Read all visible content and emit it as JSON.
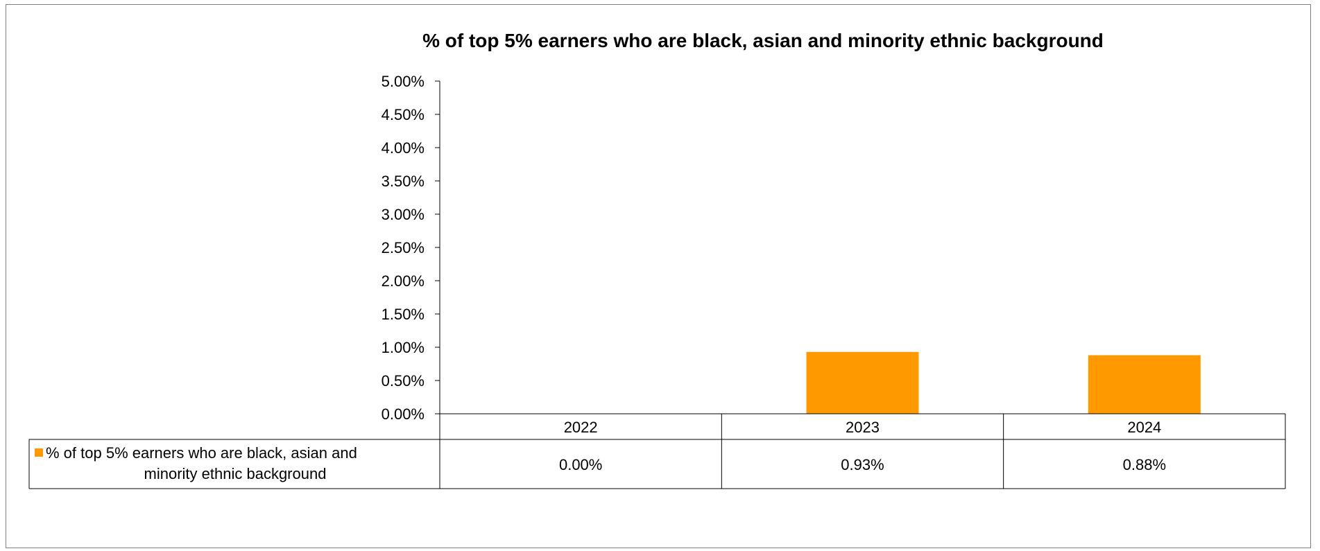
{
  "chart_data": {
    "type": "bar",
    "title": "% of top 5% earners who are black, asian and minority ethnic background",
    "categories": [
      "2022",
      "2023",
      "2024"
    ],
    "series": [
      {
        "name": "% of top 5% earners who are black, asian and minority ethnic background",
        "values": [
          0.0,
          0.93,
          0.88
        ],
        "value_labels": [
          "0.00%",
          "0.93%",
          "0.88%"
        ]
      }
    ],
    "ylim": [
      0,
      5
    ],
    "yticks": [
      "0.00%",
      "0.50%",
      "1.00%",
      "1.50%",
      "2.00%",
      "2.50%",
      "3.00%",
      "3.50%",
      "4.00%",
      "4.50%",
      "5.00%"
    ],
    "grid": false,
    "data_table": true,
    "colors": {
      "bar": "#FF9900",
      "axis": "#000000",
      "frame": "#808080"
    }
  },
  "legend_label_lines": [
    "% of top 5% earners who are black, asian and",
    "minority ethnic background"
  ]
}
